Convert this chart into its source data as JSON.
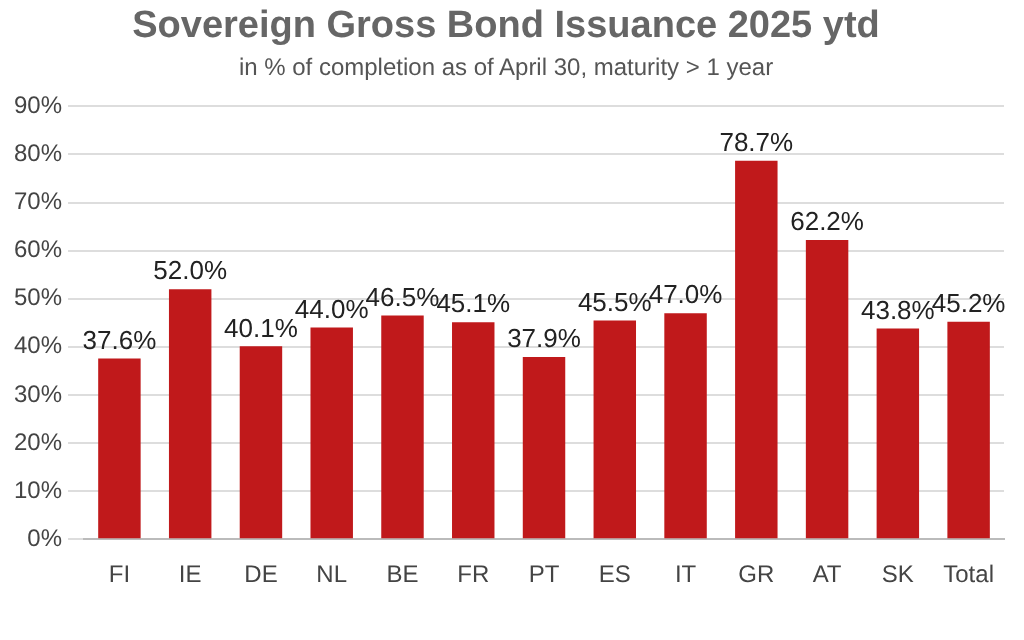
{
  "chart_data": {
    "type": "bar",
    "title": "Sovereign Gross Bond Issuance 2025 ytd",
    "subtitle": "in % of completion as of April 30, maturity > 1 year",
    "categories": [
      "FI",
      "IE",
      "DE",
      "NL",
      "BE",
      "FR",
      "PT",
      "ES",
      "IT",
      "GR",
      "AT",
      "SK",
      "Total"
    ],
    "values": [
      37.6,
      52.0,
      40.1,
      44.0,
      46.5,
      45.1,
      37.9,
      45.5,
      47.0,
      78.7,
      62.2,
      43.8,
      45.2
    ],
    "value_labels": [
      "37.6%",
      "52.0%",
      "40.1%",
      "44.0%",
      "46.5%",
      "45.1%",
      "37.9%",
      "45.5%",
      "47.0%",
      "78.7%",
      "62.2%",
      "43.8%",
      "45.2%"
    ],
    "color": "#c0191b",
    "ylim": [
      0,
      90
    ],
    "yticks": [
      {
        "value": 0,
        "label": "0%"
      },
      {
        "value": 10,
        "label": "10%"
      },
      {
        "value": 20,
        "label": "20%"
      },
      {
        "value": 30,
        "label": "30%"
      },
      {
        "value": 40,
        "label": "40%"
      },
      {
        "value": 50,
        "label": "50%"
      },
      {
        "value": 60,
        "label": "60%"
      },
      {
        "value": 70,
        "label": "70%"
      },
      {
        "value": 80,
        "label": "80%"
      },
      {
        "value": 90,
        "label": "90%"
      }
    ],
    "grid": "y"
  }
}
